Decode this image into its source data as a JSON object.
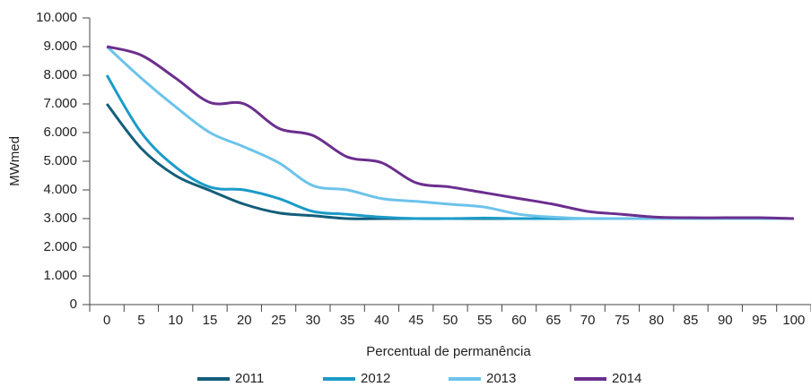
{
  "chart_data": {
    "type": "line",
    "x_label": "Percentual de permanência",
    "y_label": "MWmed",
    "categories": [
      0,
      5,
      10,
      15,
      20,
      25,
      30,
      35,
      40,
      45,
      50,
      55,
      60,
      65,
      70,
      75,
      80,
      85,
      90,
      95,
      100
    ],
    "ylim": [
      0,
      10000
    ],
    "yticks": [
      0,
      {
        "value": 1000,
        "label": "1.000"
      },
      {
        "value": 2000,
        "label": "2.000"
      },
      {
        "value": 3000,
        "label": "3.000"
      },
      {
        "value": 4000,
        "label": "4.000"
      },
      {
        "value": 5000,
        "label": "5.000"
      },
      {
        "value": 6000,
        "label": "6.000"
      },
      {
        "value": 7000,
        "label": "7.000"
      },
      {
        "value": 8000,
        "label": "8.000"
      },
      {
        "value": 9000,
        "label": "9.000"
      },
      {
        "value": 10000,
        "label": "10.000"
      }
    ],
    "legend": "bottom",
    "series": [
      {
        "name": "2011",
        "color": "#135e7a",
        "values": [
          7000,
          5450,
          4500,
          3980,
          3500,
          3200,
          3100,
          3000,
          3000,
          3000,
          3000,
          3000,
          3000,
          3000,
          3000,
          3000,
          3000,
          3000,
          3000,
          3000,
          3000
        ]
      },
      {
        "name": "2012",
        "color": "#1b9bc8",
        "values": [
          8000,
          6000,
          4800,
          4100,
          4000,
          3700,
          3250,
          3150,
          3050,
          3000,
          3000,
          3020,
          3000,
          3000,
          3000,
          3000,
          3000,
          3000,
          3000,
          3000,
          3000
        ]
      },
      {
        "name": "2013",
        "color": "#6cc3ea",
        "values": [
          9000,
          7900,
          6900,
          6000,
          5500,
          4950,
          4150,
          4000,
          3700,
          3600,
          3500,
          3400,
          3150,
          3050,
          3000,
          3000,
          3000,
          3000,
          3000,
          3000,
          3000
        ]
      },
      {
        "name": "2014",
        "color": "#6b2e8e",
        "values": [
          9000,
          8700,
          7900,
          7050,
          7000,
          6150,
          5900,
          5150,
          4950,
          4250,
          4100,
          3900,
          3700,
          3500,
          3250,
          3150,
          3050,
          3030,
          3030,
          3030,
          3000
        ]
      }
    ]
  }
}
